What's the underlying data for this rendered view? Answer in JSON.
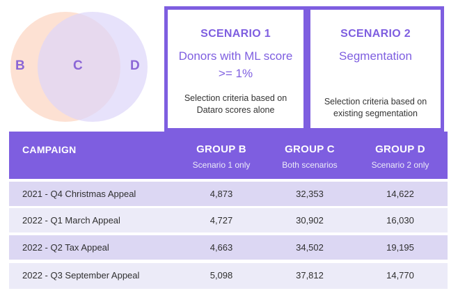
{
  "venn": {
    "label_b": "B",
    "label_c": "C",
    "label_d": "D",
    "color_left": "#fde0d0",
    "color_right": "#e3dcfb"
  },
  "scenario1": {
    "title": "SCENARIO 1",
    "subtitle_line1": "Donors with ML score",
    "subtitle_line2": ">= 1%",
    "desc_line1": "Selection criteria based on",
    "desc_line2": "Dataro scores alone"
  },
  "scenario2": {
    "title": "SCENARIO 2",
    "subtitle": "Segmentation",
    "desc_line1": "Selection criteria based on",
    "desc_line2": "existing segmentation"
  },
  "table": {
    "header": {
      "campaign": "CAMPAIGN",
      "group_b": "GROUP B",
      "group_b_sub": "Scenario 1 only",
      "group_c": "GROUP C",
      "group_c_sub": "Both scenarios",
      "group_d": "GROUP D",
      "group_d_sub": "Scenario 2 only"
    },
    "rows": [
      {
        "name": "2021 - Q4 Christmas Appeal",
        "b": "4,873",
        "c": "32,353",
        "d": "14,622"
      },
      {
        "name": "2022 - Q1 March Appeal",
        "b": "4,727",
        "c": "30,902",
        "d": "16,030"
      },
      {
        "name": "2022 - Q2 Tax Appeal",
        "b": "4,663",
        "c": "34,502",
        "d": "19,195"
      },
      {
        "name": "2022 - Q3 September Appeal",
        "b": "5,098",
        "c": "37,812",
        "d": "14,770"
      }
    ]
  },
  "colors": {
    "accent": "#7e5ee0",
    "row_dark": "#dcd7f3",
    "row_light": "#ecebf8"
  }
}
